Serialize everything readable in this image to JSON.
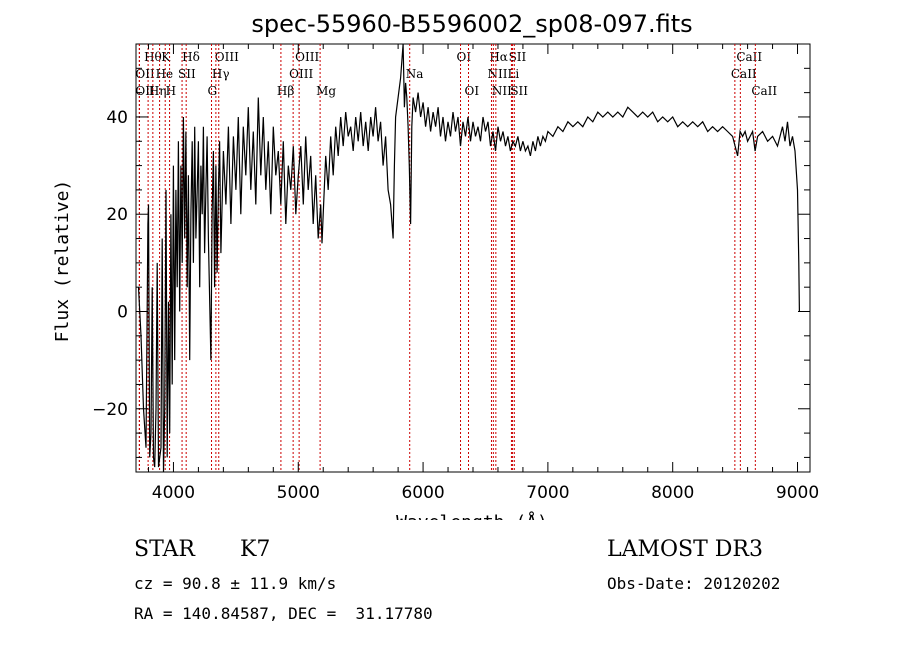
{
  "chart_data": {
    "type": "line",
    "title": "spec-55960-B5596002_sp08-097.fits",
    "xlabel": "Wavelength (Å)",
    "ylabel": "Flux (relative)",
    "xlim": [
      3700,
      9100
    ],
    "ylim": [
      -33,
      55
    ],
    "xticks": [
      4000,
      5000,
      6000,
      7000,
      8000,
      9000
    ],
    "xtick_labels": [
      "4000",
      "5000",
      "6000",
      "7000",
      "8000",
      "9000"
    ],
    "yticks": [
      -20,
      0,
      20,
      40
    ],
    "ytick_labels": [
      "−20",
      "0",
      "20",
      "40"
    ],
    "grid": false,
    "series": [
      {
        "name": "flux",
        "color": "#000000",
        "points": [
          [
            3720,
            5
          ],
          [
            3740,
            -5
          ],
          [
            3760,
            -20
          ],
          [
            3780,
            -28
          ],
          [
            3795,
            18
          ],
          [
            3800,
            22
          ],
          [
            3810,
            -30
          ],
          [
            3820,
            -25
          ],
          [
            3830,
            5
          ],
          [
            3840,
            -30
          ],
          [
            3850,
            -32
          ],
          [
            3860,
            -20
          ],
          [
            3870,
            10
          ],
          [
            3880,
            -32
          ],
          [
            3890,
            -30
          ],
          [
            3900,
            -28
          ],
          [
            3910,
            15
          ],
          [
            3920,
            -33
          ],
          [
            3930,
            -20
          ],
          [
            3940,
            25
          ],
          [
            3950,
            -30
          ],
          [
            3960,
            2
          ],
          [
            3970,
            -25
          ],
          [
            3980,
            20
          ],
          [
            3990,
            -15
          ],
          [
            4000,
            30
          ],
          [
            4010,
            -10
          ],
          [
            4020,
            25
          ],
          [
            4030,
            5
          ],
          [
            4040,
            35
          ],
          [
            4050,
            0
          ],
          [
            4060,
            30
          ],
          [
            4070,
            10
          ],
          [
            4080,
            40
          ],
          [
            4090,
            15
          ],
          [
            4100,
            37
          ],
          [
            4110,
            5
          ],
          [
            4120,
            28
          ],
          [
            4130,
            -10
          ],
          [
            4140,
            20
          ],
          [
            4150,
            35
          ],
          [
            4160,
            10
          ],
          [
            4170,
            38
          ],
          [
            4180,
            15
          ],
          [
            4190,
            25
          ],
          [
            4200,
            35
          ],
          [
            4210,
            5
          ],
          [
            4220,
            30
          ],
          [
            4230,
            20
          ],
          [
            4240,
            38
          ],
          [
            4250,
            12
          ],
          [
            4260,
            25
          ],
          [
            4270,
            36
          ],
          [
            4280,
            15
          ],
          [
            4300,
            -10
          ],
          [
            4310,
            20
          ],
          [
            4320,
            33
          ],
          [
            4330,
            5
          ],
          [
            4340,
            30
          ],
          [
            4350,
            8
          ],
          [
            4360,
            25
          ],
          [
            4370,
            35
          ],
          [
            4380,
            12
          ],
          [
            4400,
            33
          ],
          [
            4420,
            22
          ],
          [
            4440,
            38
          ],
          [
            4460,
            18
          ],
          [
            4480,
            36
          ],
          [
            4500,
            25
          ],
          [
            4520,
            40
          ],
          [
            4540,
            20
          ],
          [
            4560,
            38
          ],
          [
            4580,
            28
          ],
          [
            4600,
            42
          ],
          [
            4620,
            25
          ],
          [
            4640,
            37
          ],
          [
            4660,
            22
          ],
          [
            4680,
            44
          ],
          [
            4700,
            28
          ],
          [
            4720,
            40
          ],
          [
            4740,
            25
          ],
          [
            4760,
            35
          ],
          [
            4780,
            20
          ],
          [
            4800,
            38
          ],
          [
            4820,
            28
          ],
          [
            4840,
            33
          ],
          [
            4860,
            22
          ],
          [
            4880,
            35
          ],
          [
            4900,
            18
          ],
          [
            4920,
            30
          ],
          [
            4940,
            25
          ],
          [
            4960,
            34
          ],
          [
            4980,
            20
          ],
          [
            5000,
            28
          ],
          [
            5020,
            34
          ],
          [
            5040,
            22
          ],
          [
            5060,
            36
          ],
          [
            5080,
            25
          ],
          [
            5100,
            32
          ],
          [
            5120,
            18
          ],
          [
            5140,
            28
          ],
          [
            5160,
            15
          ],
          [
            5180,
            22
          ],
          [
            5190,
            14
          ],
          [
            5200,
            20
          ],
          [
            5220,
            32
          ],
          [
            5240,
            25
          ],
          [
            5260,
            36
          ],
          [
            5280,
            28
          ],
          [
            5300,
            38
          ],
          [
            5320,
            32
          ],
          [
            5340,
            40
          ],
          [
            5360,
            34
          ],
          [
            5380,
            41
          ],
          [
            5400,
            36
          ],
          [
            5420,
            38
          ],
          [
            5440,
            33
          ],
          [
            5460,
            40
          ],
          [
            5480,
            35
          ],
          [
            5500,
            41
          ],
          [
            5520,
            34
          ],
          [
            5540,
            39
          ],
          [
            5560,
            33
          ],
          [
            5580,
            40
          ],
          [
            5600,
            36
          ],
          [
            5620,
            42
          ],
          [
            5640,
            35
          ],
          [
            5660,
            39
          ],
          [
            5680,
            30
          ],
          [
            5700,
            36
          ],
          [
            5720,
            25
          ],
          [
            5740,
            22
          ],
          [
            5760,
            15
          ],
          [
            5770,
            30
          ],
          [
            5780,
            40
          ],
          [
            5800,
            44
          ],
          [
            5820,
            48
          ],
          [
            5840,
            55
          ],
          [
            5850,
            42
          ],
          [
            5860,
            47
          ],
          [
            5870,
            44
          ],
          [
            5880,
            38
          ],
          [
            5890,
            30
          ],
          [
            5900,
            18
          ],
          [
            5910,
            38
          ],
          [
            5920,
            44
          ],
          [
            5940,
            41
          ],
          [
            5960,
            45
          ],
          [
            5980,
            40
          ],
          [
            6000,
            43
          ],
          [
            6020,
            38
          ],
          [
            6040,
            42
          ],
          [
            6060,
            37
          ],
          [
            6080,
            41
          ],
          [
            6100,
            38
          ],
          [
            6120,
            42
          ],
          [
            6140,
            36
          ],
          [
            6160,
            40
          ],
          [
            6180,
            35
          ],
          [
            6200,
            39
          ],
          [
            6220,
            36
          ],
          [
            6240,
            41
          ],
          [
            6260,
            37
          ],
          [
            6280,
            40
          ],
          [
            6300,
            34
          ],
          [
            6320,
            39
          ],
          [
            6340,
            36
          ],
          [
            6360,
            40
          ],
          [
            6380,
            35
          ],
          [
            6400,
            39
          ],
          [
            6420,
            36
          ],
          [
            6440,
            38
          ],
          [
            6460,
            35
          ],
          [
            6480,
            40
          ],
          [
            6500,
            37
          ],
          [
            6520,
            39
          ],
          [
            6540,
            34
          ],
          [
            6560,
            37
          ],
          [
            6580,
            33
          ],
          [
            6600,
            38
          ],
          [
            6620,
            35
          ],
          [
            6640,
            37
          ],
          [
            6660,
            34
          ],
          [
            6680,
            36
          ],
          [
            6700,
            33
          ],
          [
            6720,
            35
          ],
          [
            6740,
            34
          ],
          [
            6760,
            36
          ],
          [
            6780,
            33
          ],
          [
            6800,
            35
          ],
          [
            6820,
            33
          ],
          [
            6840,
            34
          ],
          [
            6860,
            32
          ],
          [
            6880,
            35
          ],
          [
            6900,
            33
          ],
          [
            6920,
            36
          ],
          [
            6940,
            34
          ],
          [
            6960,
            36
          ],
          [
            6980,
            35
          ],
          [
            7000,
            37
          ],
          [
            7040,
            36
          ],
          [
            7080,
            38
          ],
          [
            7120,
            37
          ],
          [
            7160,
            39
          ],
          [
            7200,
            38
          ],
          [
            7240,
            39
          ],
          [
            7280,
            38
          ],
          [
            7320,
            40
          ],
          [
            7360,
            39
          ],
          [
            7400,
            41
          ],
          [
            7440,
            40
          ],
          [
            7480,
            41
          ],
          [
            7520,
            40
          ],
          [
            7560,
            41
          ],
          [
            7600,
            40
          ],
          [
            7640,
            42
          ],
          [
            7680,
            41
          ],
          [
            7720,
            40
          ],
          [
            7760,
            41
          ],
          [
            7800,
            40
          ],
          [
            7840,
            41
          ],
          [
            7880,
            39
          ],
          [
            7920,
            40
          ],
          [
            7960,
            39
          ],
          [
            8000,
            40
          ],
          [
            8040,
            38
          ],
          [
            8080,
            39
          ],
          [
            8120,
            38
          ],
          [
            8160,
            39
          ],
          [
            8200,
            38
          ],
          [
            8240,
            39
          ],
          [
            8280,
            37
          ],
          [
            8320,
            38
          ],
          [
            8360,
            37
          ],
          [
            8400,
            38
          ],
          [
            8440,
            37
          ],
          [
            8480,
            36
          ],
          [
            8520,
            32
          ],
          [
            8540,
            37
          ],
          [
            8560,
            36
          ],
          [
            8580,
            37
          ],
          [
            8600,
            35
          ],
          [
            8640,
            37
          ],
          [
            8660,
            33
          ],
          [
            8680,
            36
          ],
          [
            8720,
            37
          ],
          [
            8760,
            35
          ],
          [
            8800,
            36
          ],
          [
            8840,
            34
          ],
          [
            8880,
            38
          ],
          [
            8900,
            35
          ],
          [
            8920,
            39
          ],
          [
            8940,
            34
          ],
          [
            8960,
            36
          ],
          [
            8980,
            33
          ],
          [
            9000,
            25
          ],
          [
            9010,
            10
          ],
          [
            9015,
            0
          ]
        ]
      }
    ],
    "spectral_lines": [
      {
        "label": "Hθ",
        "x": 3797,
        "row": 1
      },
      {
        "label": "OII",
        "x": 3727,
        "row": 2
      },
      {
        "label": "OII",
        "x": 3727,
        "row": 3
      },
      {
        "label": "K",
        "x": 3934,
        "row": 1
      },
      {
        "label": "He",
        "x": 3889,
        "row": 2
      },
      {
        "label": "Hη",
        "x": 3835,
        "row": 3
      },
      {
        "label": "Hδ",
        "x": 4102,
        "row": 1
      },
      {
        "label": "SII",
        "x": 4069,
        "row": 2
      },
      {
        "label": "H",
        "x": 3969,
        "row": 3
      },
      {
        "label": "OIII",
        "x": 4363,
        "row": 1
      },
      {
        "label": "Hγ",
        "x": 4340,
        "row": 2
      },
      {
        "label": "G",
        "x": 4305,
        "row": 3
      },
      {
        "label": "OIII",
        "x": 5007,
        "row": 1
      },
      {
        "label": "OIII",
        "x": 4959,
        "row": 2
      },
      {
        "label": "Hβ",
        "x": 4861,
        "row": 3
      },
      {
        "label": "Mg",
        "x": 5175,
        "row": 3
      },
      {
        "label": "Na",
        "x": 5893,
        "row": 2
      },
      {
        "label": "OI",
        "x": 6300,
        "row": 1
      },
      {
        "label": "OI",
        "x": 6364,
        "row": 3
      },
      {
        "label": "Hα",
        "x": 6563,
        "row": 1
      },
      {
        "label": "NII",
        "x": 6548,
        "row": 2
      },
      {
        "label": "NII",
        "x": 6583,
        "row": 3
      },
      {
        "label": "SII",
        "x": 6717,
        "row": 1
      },
      {
        "label": "Li",
        "x": 6708,
        "row": 2
      },
      {
        "label": "SII",
        "x": 6731,
        "row": 3
      },
      {
        "label": "CaII",
        "x": 8542,
        "row": 1
      },
      {
        "label": "CaII",
        "x": 8498,
        "row": 2
      },
      {
        "label": "CaII",
        "x": 8662,
        "row": 3
      }
    ],
    "line_color": "#cc0000"
  },
  "info": {
    "class_label": "STAR",
    "subclass": "K7",
    "survey": "LAMOST DR3",
    "cz": "cz = 90.8 ± 11.9 km/s",
    "obs_date": "Obs-Date: 20120202",
    "coords": "RA = 140.84587, DEC =  31.17780"
  }
}
